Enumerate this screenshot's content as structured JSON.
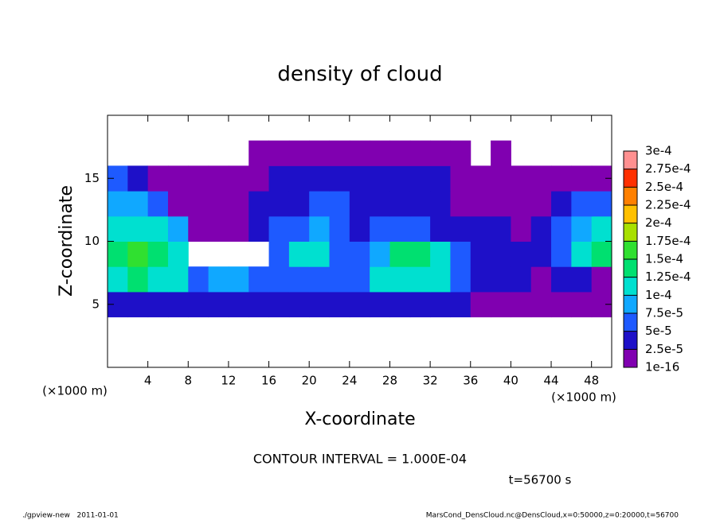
{
  "chart_data": {
    "type": "heatmap",
    "title": "density of cloud",
    "x_label": "X-coordinate",
    "y_label": "Z-coordinate",
    "x_unit_label": "(×1000 m)",
    "y_unit_label": "(×1000 m)",
    "annotation": "CONTOUR INTERVAL = 1.000E-04",
    "time_label": "t=56700 s",
    "footer_left": "./gpview-new   2011-01-01",
    "footer_right": "MarsCond_DensCloud.nc@DensCloud,x=0:50000,z=0:20000,t=56700",
    "xlim": [
      0,
      50
    ],
    "xticks": [
      4,
      8,
      12,
      16,
      20,
      24,
      28,
      32,
      36,
      40,
      44,
      48
    ],
    "ylim": [
      0,
      20
    ],
    "yticks": [
      5,
      10,
      15
    ],
    "x": [
      1,
      3,
      5,
      7,
      9,
      11,
      13,
      15,
      17,
      19,
      21,
      23,
      25,
      27,
      29,
      31,
      33,
      35,
      37,
      39,
      41,
      43,
      45,
      47,
      49
    ],
    "y": [
      1,
      3,
      5,
      7,
      9,
      11,
      13,
      15,
      17,
      19
    ],
    "values": [
      [
        null,
        null,
        null,
        null,
        null,
        null,
        null,
        null,
        null,
        null,
        null,
        null,
        null,
        null,
        null,
        null,
        null,
        null,
        null,
        null,
        null,
        null,
        null,
        null,
        null
      ],
      [
        null,
        null,
        null,
        null,
        null,
        null,
        null,
        null,
        null,
        null,
        null,
        null,
        null,
        null,
        null,
        null,
        null,
        null,
        null,
        null,
        null,
        null,
        null,
        null,
        null
      ],
      [
        3e-05,
        3e-05,
        3e-05,
        3e-05,
        3e-05,
        3e-05,
        3e-05,
        3e-05,
        3e-05,
        3e-05,
        3e-05,
        3e-05,
        3e-05,
        3e-05,
        3e-05,
        3e-05,
        3e-05,
        3e-05,
        1e-05,
        1e-05,
        1e-05,
        1e-05,
        1e-05,
        1e-05,
        1e-05
      ],
      [
        0.00012,
        0.00013,
        0.00012,
        0.0001,
        6e-05,
        8e-05,
        8e-05,
        5e-05,
        5e-05,
        6e-05,
        6e-05,
        5e-05,
        7e-05,
        0.00011,
        0.00012,
        0.00012,
        0.0001,
        6e-05,
        4e-05,
        3e-05,
        3e-05,
        1e-05,
        3e-05,
        3e-05,
        1e-05
      ],
      [
        0.00014,
        0.00015,
        0.00014,
        0.00012,
        null,
        null,
        null,
        null,
        5e-05,
        0.00011,
        0.00011,
        6e-05,
        5e-05,
        8e-05,
        0.00013,
        0.00013,
        0.00011,
        6e-05,
        4e-05,
        4e-05,
        3e-05,
        3e-05,
        5e-05,
        0.00011,
        0.00013
      ],
      [
        0.00011,
        0.00012,
        0.00012,
        9e-05,
        1e-05,
        1e-05,
        1e-05,
        3e-05,
        5e-05,
        7e-05,
        8e-05,
        5e-05,
        4e-05,
        6e-05,
        7e-05,
        6e-05,
        4e-05,
        3e-05,
        3e-05,
        3e-05,
        1e-05,
        3e-05,
        7e-05,
        9e-05,
        0.00011
      ],
      [
        8e-05,
        8e-05,
        6e-05,
        1e-05,
        1e-05,
        1e-05,
        1e-05,
        3e-05,
        4e-05,
        4e-05,
        5e-05,
        5e-05,
        4e-05,
        4e-05,
        4e-05,
        4e-05,
        3e-05,
        1e-05,
        1e-05,
        1e-05,
        1e-05,
        1e-05,
        3e-05,
        5e-05,
        6e-05
      ],
      [
        5e-05,
        3e-05,
        1e-05,
        1e-05,
        1e-05,
        1e-05,
        1e-05,
        1e-05,
        3e-05,
        3e-05,
        3e-05,
        3e-05,
        3e-05,
        3e-05,
        3e-05,
        3e-05,
        3e-05,
        1e-05,
        1e-05,
        1e-05,
        1e-05,
        1e-05,
        1e-05,
        1e-05,
        1e-05
      ],
      [
        null,
        null,
        null,
        null,
        null,
        null,
        null,
        1e-05,
        1e-05,
        1e-05,
        1e-05,
        1e-05,
        1e-05,
        1e-05,
        1e-05,
        1e-05,
        1e-05,
        1e-05,
        null,
        1e-05,
        null,
        null,
        null,
        null,
        null
      ],
      [
        null,
        null,
        null,
        null,
        null,
        null,
        null,
        null,
        null,
        null,
        null,
        null,
        null,
        null,
        null,
        null,
        null,
        null,
        null,
        null,
        null,
        null,
        null,
        null,
        null
      ]
    ],
    "levels": [
      {
        "value": 1e-16,
        "label": "1e-16"
      },
      {
        "value": 2.5e-05,
        "label": "2.5e-5"
      },
      {
        "value": 5e-05,
        "label": "5e-5"
      },
      {
        "value": 7.5e-05,
        "label": "7.5e-5"
      },
      {
        "value": 0.0001,
        "label": "1e-4"
      },
      {
        "value": 0.000125,
        "label": "1.25e-4"
      },
      {
        "value": 0.00015,
        "label": "1.5e-4"
      },
      {
        "value": 0.000175,
        "label": "1.75e-4"
      },
      {
        "value": 0.0002,
        "label": "2e-4"
      },
      {
        "value": 0.000225,
        "label": "2.25e-4"
      },
      {
        "value": 0.00025,
        "label": "2.5e-4"
      },
      {
        "value": 0.000275,
        "label": "2.75e-4"
      },
      {
        "value": 0.0003,
        "label": "3e-4"
      }
    ],
    "colors": [
      "#8000b0",
      "#1e10c8",
      "#1e5aff",
      "#10a8ff",
      "#00e0d0",
      "#00e070",
      "#30e030",
      "#a8e000",
      "#ffc000",
      "#ff8000",
      "#ff3000",
      "#ff9090"
    ]
  }
}
